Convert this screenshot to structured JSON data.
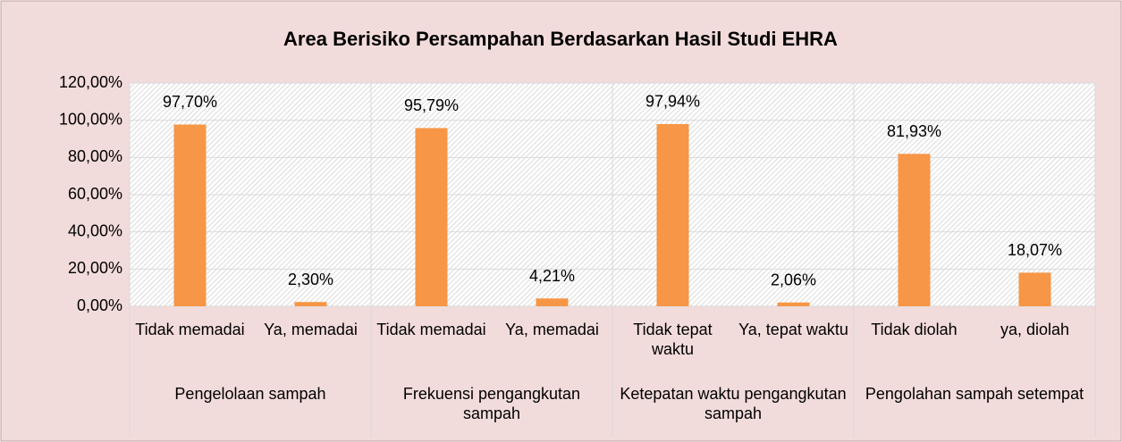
{
  "chart_data": {
    "type": "bar",
    "title": "Area Berisiko Persampahan Berdasarkan Hasil Studi EHRA",
    "categories": [
      "Tidak memadai",
      "Ya, memadai",
      "Tidak memadai",
      "Ya, memadai",
      "Tidak tepat waktu",
      "Ya, tepat waktu",
      "Tidak diolah",
      "ya, diolah"
    ],
    "groups": [
      "Pengelolaan sampah",
      "Frekuensi pengangkutan sampah",
      "Ketepatan waktu pengangkutan sampah",
      "Pengolahan sampah setempat"
    ],
    "values": [
      97.7,
      2.3,
      95.79,
      4.21,
      97.94,
      2.06,
      81.93,
      18.07
    ],
    "value_labels": [
      "97,70%",
      "2,30%",
      "95,79%",
      "4,21%",
      "97,94%",
      "2,06%",
      "81,93%",
      "18,07%"
    ],
    "color": "#f79646",
    "ylim": [
      0,
      120
    ],
    "yticks": [
      {
        "value": 0,
        "label": "0,00%"
      },
      {
        "value": 20,
        "label": "20,00%"
      },
      {
        "value": 40,
        "label": "40,00%"
      },
      {
        "value": 60,
        "label": "60,00%"
      },
      {
        "value": 80,
        "label": "80,00%"
      },
      {
        "value": 100,
        "label": "100,00%"
      },
      {
        "value": 120,
        "label": "120,00%"
      }
    ],
    "grid": true
  }
}
